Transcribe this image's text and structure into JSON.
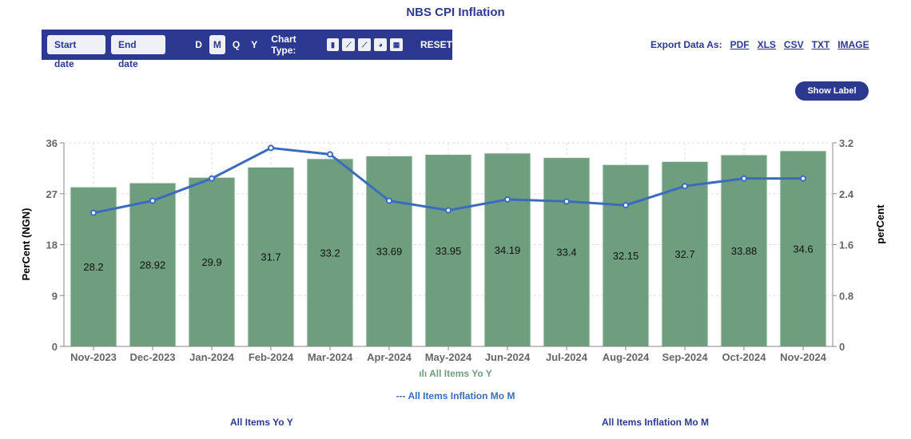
{
  "title": "NBS CPI Inflation",
  "toolbar": {
    "start_date": "Start date",
    "end_date": "End date",
    "periods": [
      "D",
      "M",
      "Q",
      "Y"
    ],
    "active_period": "M",
    "chart_type_label": "Chart Type:",
    "chart_type_icons": [
      "bar-chart-icon",
      "line-chart-icon",
      "area-chart-icon",
      "pie-chart-icon",
      "table-icon"
    ],
    "reset": "RESET"
  },
  "export": {
    "label": "Export Data As:",
    "formats": [
      "PDF",
      "XLS",
      "CSV",
      "TXT",
      "IMAGE"
    ]
  },
  "show_label": "Show Label",
  "chart_data": {
    "type": "bar+line",
    "categories": [
      "Nov-2023",
      "Dec-2023",
      "Jan-2024",
      "Feb-2024",
      "Mar-2024",
      "Apr-2024",
      "May-2024",
      "Jun-2024",
      "Jul-2024",
      "Aug-2024",
      "Sep-2024",
      "Oct-2024",
      "Nov-2024"
    ],
    "series": [
      {
        "name": "All Items Yo Y",
        "type": "bar",
        "axis": "left",
        "color": "#6f9e7f",
        "values": [
          28.2,
          28.92,
          29.9,
          31.7,
          33.2,
          33.69,
          33.95,
          34.19,
          33.4,
          32.15,
          32.7,
          33.88,
          34.6
        ]
      },
      {
        "name": "All Items Inflation Mo M",
        "type": "line",
        "axis": "right",
        "color": "#3a6bbf",
        "values": [
          2.1,
          2.29,
          2.64,
          3.12,
          3.02,
          2.29,
          2.14,
          2.31,
          2.28,
          2.22,
          2.52,
          2.64,
          2.64
        ]
      }
    ],
    "ylabel": "PerCent (NGN)",
    "y2label": "perCent",
    "ylim": [
      0,
      36
    ],
    "yticks": [
      "0",
      "9",
      "18",
      "27",
      "36"
    ],
    "y2lim": [
      0,
      3.2
    ],
    "y2ticks": [
      "0",
      "0.8",
      "1.6",
      "2.4",
      "3.2"
    ],
    "grid": true,
    "legend": "bottom"
  },
  "footer": {
    "left": "All Items Yo Y",
    "right": "All Items Inflation Mo M"
  }
}
